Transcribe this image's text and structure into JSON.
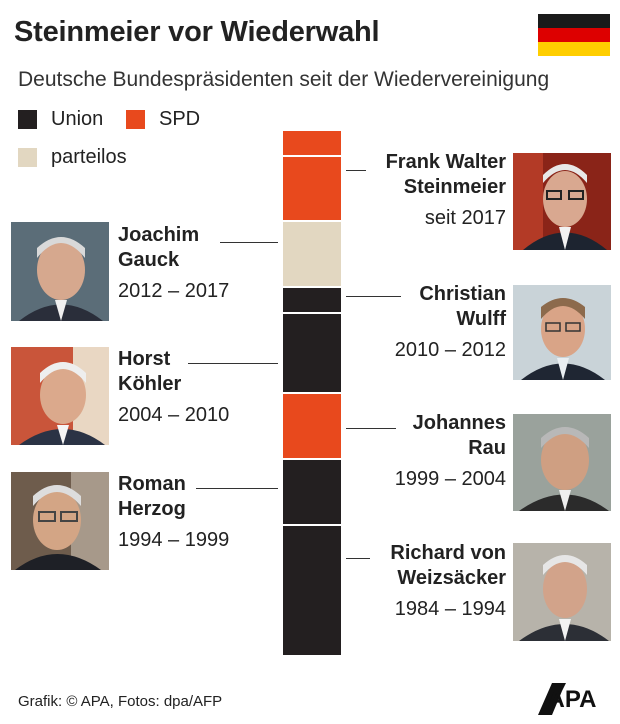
{
  "title": "Steinmeier vor Wiederwahl",
  "subtitle": "Deutsche Bundespräsidenten seit der Wiedervereinigung",
  "legend": [
    {
      "label": "Union",
      "color": "#231f20"
    },
    {
      "label": "SPD",
      "color": "#e8491d"
    },
    {
      "label": "parteilos",
      "color": "#e2d7c1"
    }
  ],
  "flag_colors": [
    "#1a1a1a",
    "#dd0000",
    "#ffce00"
  ],
  "timeline": [
    {
      "party": "SPD",
      "color": "#e8491d"
    },
    {
      "party": "SPD",
      "color": "#e8491d"
    },
    {
      "party": "parteilos",
      "color": "#e2d7c1"
    },
    {
      "party": "Union",
      "color": "#231f20"
    },
    {
      "party": "Union",
      "color": "#231f20"
    },
    {
      "party": "SPD",
      "color": "#e8491d"
    },
    {
      "party": "Union",
      "color": "#231f20"
    },
    {
      "party": "Union",
      "color": "#231f20"
    }
  ],
  "presidents": {
    "steinmeier": {
      "line1": "Frank Walter",
      "line2": "Steinmeier",
      "years": "seit 2017",
      "icon": "portrait-icon"
    },
    "gauck": {
      "line1": "Joachim",
      "line2": "Gauck",
      "years": "2012 – 2017",
      "icon": "portrait-icon"
    },
    "wulff": {
      "line1": "Christian",
      "line2": "Wulff",
      "years": "2010 – 2012",
      "icon": "portrait-icon"
    },
    "koehler": {
      "line1": "Horst",
      "line2": "Köhler",
      "years": "2004 – 2010",
      "icon": "portrait-icon"
    },
    "rau": {
      "line1": "Johannes",
      "line2": "Rau",
      "years": "1999 – 2004",
      "icon": "portrait-icon"
    },
    "herzog": {
      "line1": "Roman",
      "line2": "Herzog",
      "years": "1994 – 1999",
      "icon": "portrait-icon"
    },
    "weizsaecker": {
      "line1": "Richard von",
      "line2": "Weizsäcker",
      "years": "1984 – 1994",
      "icon": "portrait-icon"
    }
  },
  "footer": "Grafik: © APA, Fotos: dpa/AFP",
  "logo_text": "APA"
}
